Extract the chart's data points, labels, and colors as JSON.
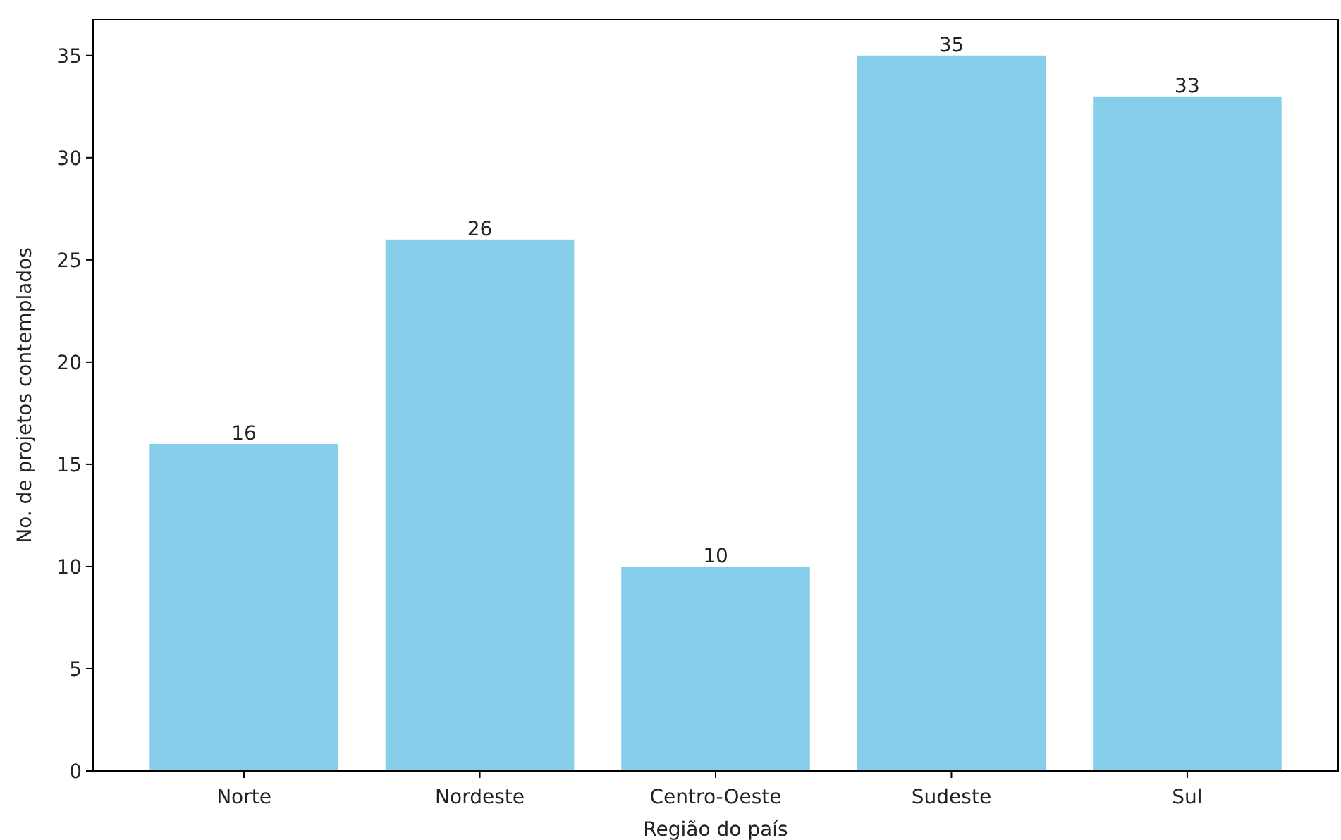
{
  "chart_data": {
    "type": "bar",
    "xlabel": "Região do país",
    "ylabel": "No. de projetos contemplados",
    "categories": [
      "Norte",
      "Nordeste",
      "Centro-Oeste",
      "Sudeste",
      "Sul"
    ],
    "values": [
      16,
      26,
      10,
      35,
      33
    ],
    "color": "#87ceeb",
    "ylim": [
      0,
      36.75
    ],
    "yticks": [
      0,
      5,
      10,
      15,
      20,
      25,
      30,
      35
    ],
    "data_labels": true
  }
}
